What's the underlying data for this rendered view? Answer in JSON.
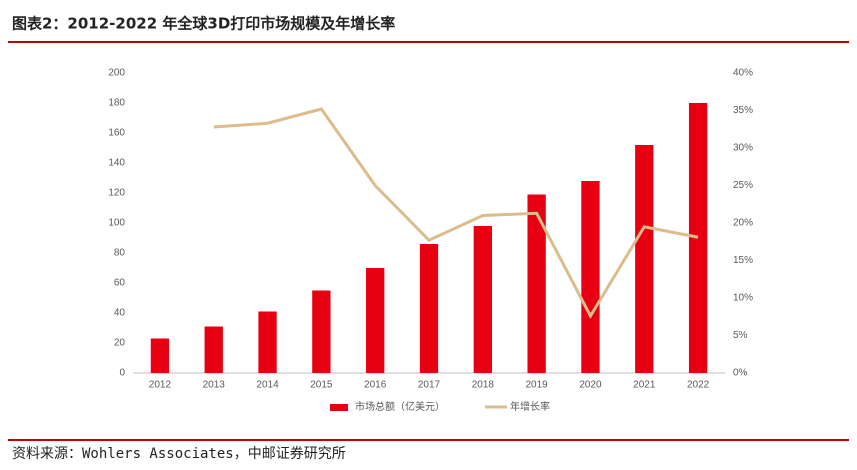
{
  "chart_data": {
    "type": "bar-line",
    "title": "图表2：2012-2022 年全球3D打印市场规模及年增长率",
    "source": "资料来源：Wohlers Associates，中邮证券研究所",
    "categories": [
      "2012",
      "2013",
      "2014",
      "2015",
      "2016",
      "2017",
      "2018",
      "2019",
      "2020",
      "2021",
      "2022"
    ],
    "series": [
      {
        "name": "市场总额（亿美元）",
        "type": "bar",
        "color": "#e60012",
        "values": [
          23,
          31,
          41,
          55,
          70,
          86,
          98,
          119,
          128,
          152,
          180
        ]
      },
      {
        "name": "年增长率",
        "type": "line",
        "axis": "y2",
        "color": "#dcbc8a",
        "values": [
          null,
          32.8,
          33.3,
          35.2,
          25,
          17.7,
          21,
          21.3,
          7.6,
          19.5,
          18.1
        ]
      }
    ],
    "ylim": [
      0,
      200
    ],
    "yticks": [
      0,
      20,
      40,
      60,
      80,
      100,
      120,
      140,
      160,
      180,
      200
    ],
    "y2lim": [
      0,
      40
    ],
    "y2ticks": [
      {
        "value": 0,
        "label": "0%"
      },
      {
        "value": 5,
        "label": "5%"
      },
      {
        "value": 10,
        "label": "10%"
      },
      {
        "value": 15,
        "label": "15%"
      },
      {
        "value": 20,
        "label": "20%"
      },
      {
        "value": 25,
        "label": "25%"
      },
      {
        "value": 30,
        "label": "30%"
      },
      {
        "value": 35,
        "label": "35%"
      },
      {
        "value": 40,
        "label": "40%"
      }
    ]
  }
}
